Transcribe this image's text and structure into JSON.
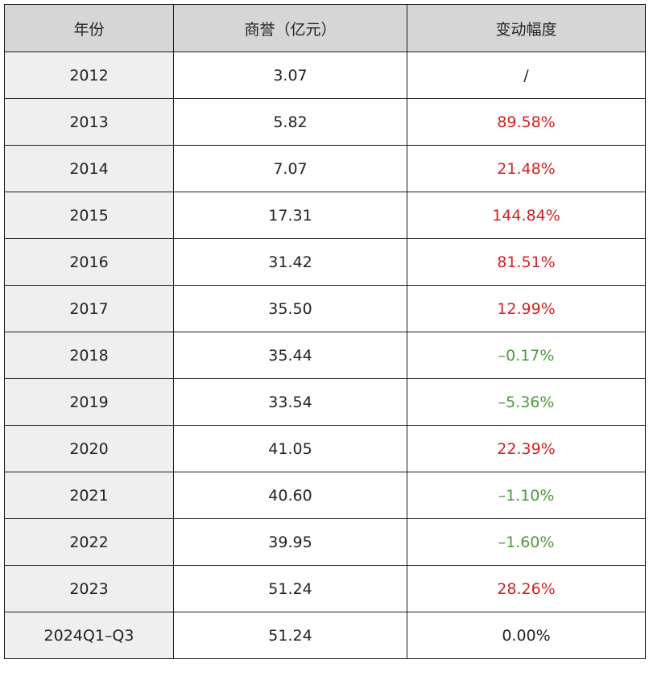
{
  "table": {
    "headers": [
      "年份",
      "商誉（亿元）",
      "变动幅度"
    ],
    "rows": [
      {
        "year": "2012",
        "goodwill": "3.07",
        "change": "/",
        "trend": "neutral"
      },
      {
        "year": "2013",
        "goodwill": "5.82",
        "change": "89.58%",
        "trend": "pos"
      },
      {
        "year": "2014",
        "goodwill": "7.07",
        "change": "21.48%",
        "trend": "pos"
      },
      {
        "year": "2015",
        "goodwill": "17.31",
        "change": "144.84%",
        "trend": "pos"
      },
      {
        "year": "2016",
        "goodwill": "31.42",
        "change": "81.51%",
        "trend": "pos"
      },
      {
        "year": "2017",
        "goodwill": "35.50",
        "change": "12.99%",
        "trend": "pos"
      },
      {
        "year": "2018",
        "goodwill": "35.44",
        "change": "–0.17%",
        "trend": "neg"
      },
      {
        "year": "2019",
        "goodwill": "33.54",
        "change": "–5.36%",
        "trend": "neg"
      },
      {
        "year": "2020",
        "goodwill": "41.05",
        "change": "22.39%",
        "trend": "pos"
      },
      {
        "year": "2021",
        "goodwill": "40.60",
        "change": "–1.10%",
        "trend": "neg"
      },
      {
        "year": "2022",
        "goodwill": "39.95",
        "change": "–1.60%",
        "trend": "neg"
      },
      {
        "year": "2023",
        "goodwill": "51.24",
        "change": "28.26%",
        "trend": "pos"
      },
      {
        "year": "2024Q1–Q3",
        "goodwill": "51.24",
        "change": "0.00%",
        "trend": "neutral"
      }
    ]
  },
  "colors": {
    "header_bg": "#d6d6d6",
    "year_col_bg": "#efefef",
    "increase": "#d22222",
    "decrease": "#4e9a3c",
    "border": "#1a1a1a"
  }
}
